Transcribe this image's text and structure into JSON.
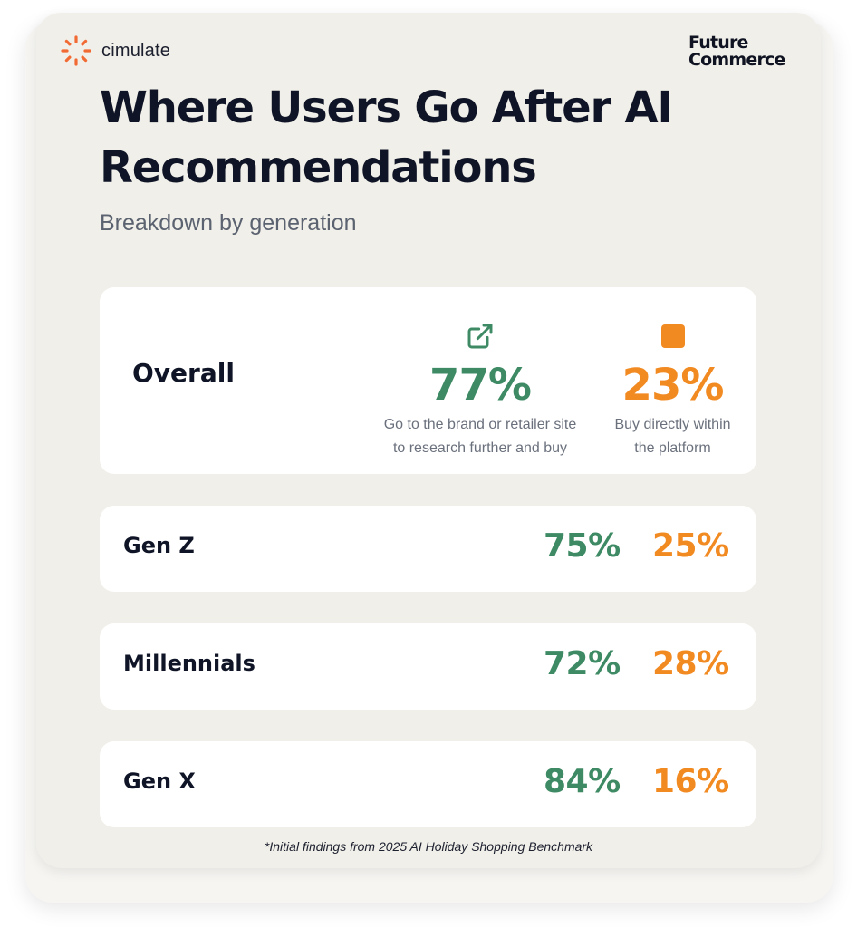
{
  "brand": {
    "name": "cimulate",
    "partner_logo_line1": "Future",
    "partner_logo_line2": "Commerce"
  },
  "colors": {
    "green": "#3d8a64",
    "orange": "#f28a22",
    "card_bg": "#f1efe9"
  },
  "icons": {
    "green": "external-link-icon",
    "orange": "square-icon"
  },
  "chart_data": {
    "type": "table",
    "title": "Where Users Go After AI Recommendations",
    "subtitle": "Breakdown by generation",
    "legend": [
      {
        "value": "77%",
        "description_line1": "Go to the brand or retailer site",
        "description_line2": "to research further and buy",
        "color": "#3d8a64"
      },
      {
        "value": "23%",
        "description_line1": "Buy directly within",
        "description_line2": "the platform",
        "color": "#f28a22"
      }
    ],
    "overall": {
      "label": "Overall",
      "research_site": "77%",
      "buy_in_platform": "23%"
    },
    "rows": [
      {
        "label": "Gen Z",
        "research_site": "75%",
        "buy_in_platform": "25%"
      },
      {
        "label": "Millennials",
        "research_site": "72%",
        "buy_in_platform": "28%"
      },
      {
        "label": "Gen X",
        "research_site": "84%",
        "buy_in_platform": "16%"
      }
    ],
    "footnote": "*Initial findings from 2025 AI Holiday Shopping Benchmark"
  }
}
